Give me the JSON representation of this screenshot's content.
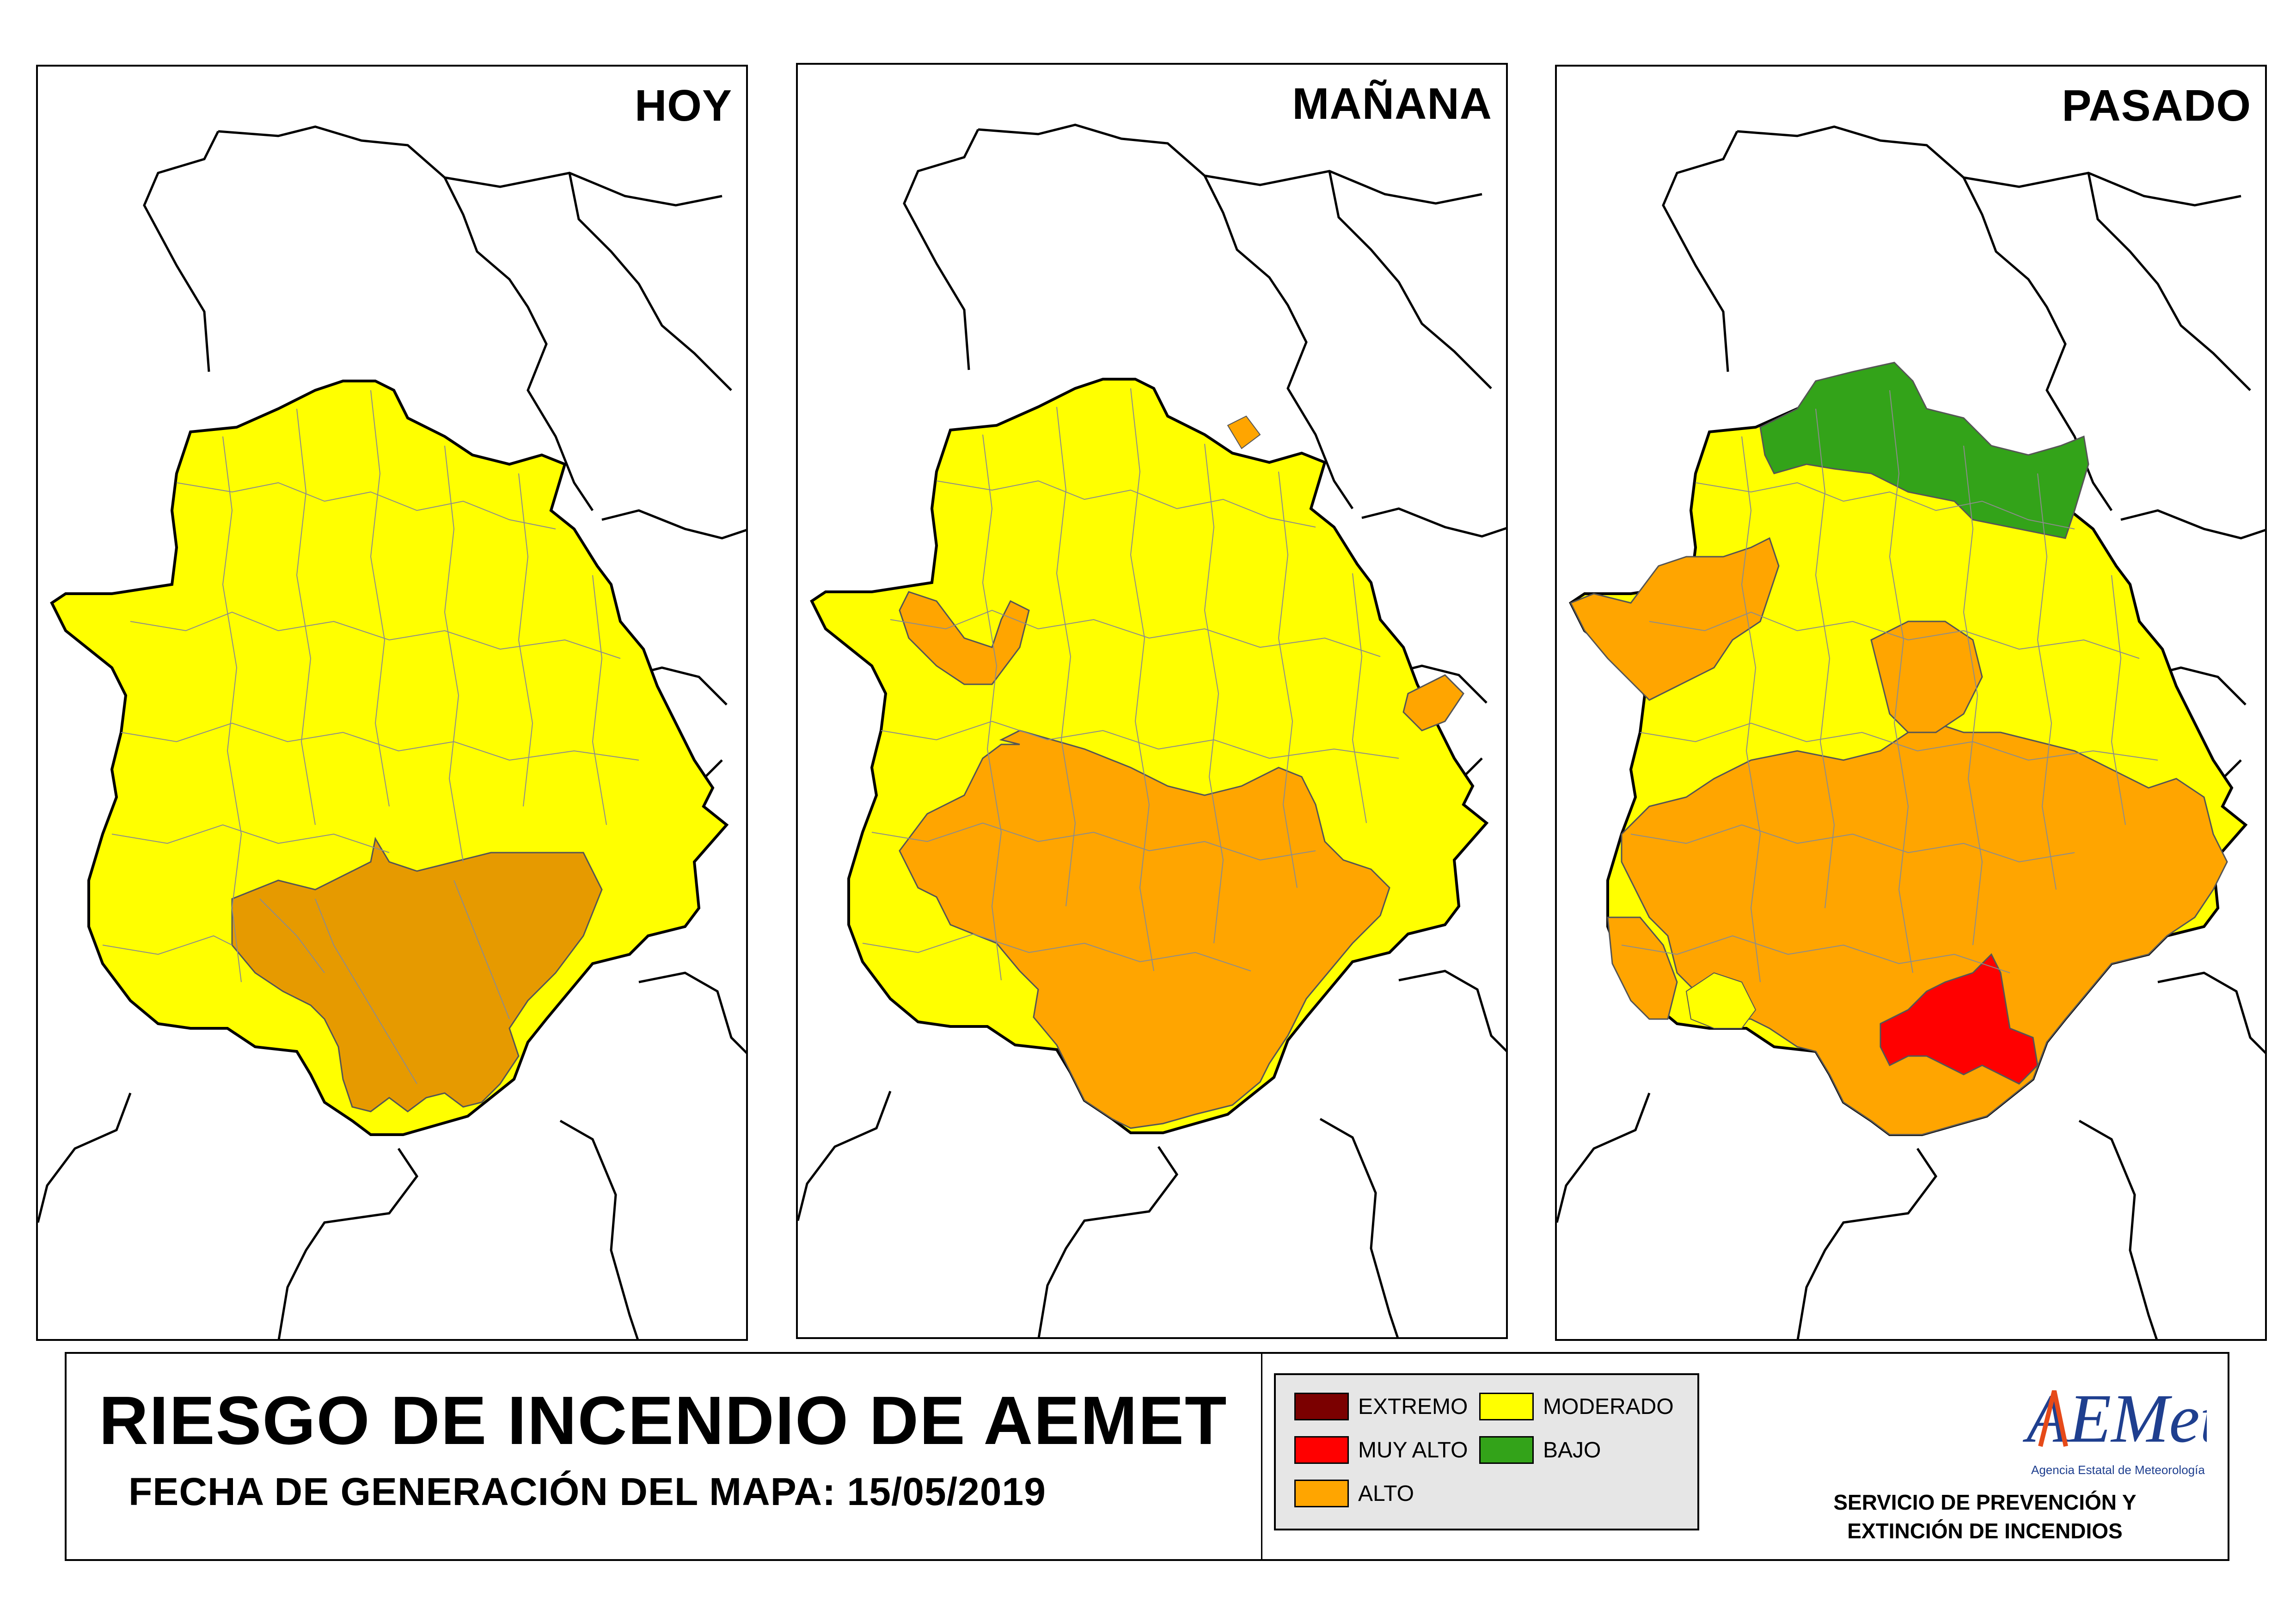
{
  "panels": [
    {
      "id": "hoy",
      "title": "HOY"
    },
    {
      "id": "manana",
      "title": "MAÑANA"
    },
    {
      "id": "pasado",
      "title": "PASADO"
    }
  ],
  "footer": {
    "title": "RIESGO DE INCENDIO DE AEMET",
    "subtitle": "FECHA DE GENERACIÓN DEL MAPA: 15/05/2019",
    "service_line1": "SERVICIO DE PREVENCIÓN Y",
    "service_line2": "EXTINCIÓN DE INCENDIOS",
    "logo_text": "AEMet",
    "logo_subtext": "Agencia Estatal de Meteorología"
  },
  "legend": [
    {
      "label": "EXTREMO",
      "color": "#7b0000"
    },
    {
      "label": "MODERADO",
      "color": "#ffff00"
    },
    {
      "label": "MUY ALTO",
      "color": "#ff0000"
    },
    {
      "label": "BAJO",
      "color": "#33a319"
    },
    {
      "label": "ALTO",
      "color": "#ffa500"
    }
  ],
  "map_colors": {
    "moderado": "#ffff00",
    "alto": "#ffa500",
    "alto_dark": "#e69a00",
    "muy_alto": "#ff0000",
    "bajo": "#33a319",
    "border": "#000000",
    "municipal": "#8c8c8c"
  }
}
